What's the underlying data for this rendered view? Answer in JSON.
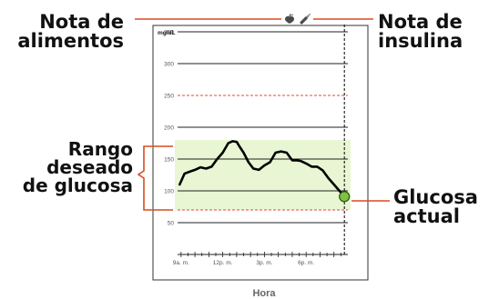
{
  "callouts": {
    "food_note": {
      "line1": "Nota de",
      "line2": "alimentos"
    },
    "insulin_note": {
      "line1": "Nota de",
      "line2": "insulina"
    },
    "target_range": {
      "line1": "Rango",
      "line2": "deseado",
      "line3": "de glucosa"
    },
    "current_glucose": {
      "line1": "Glucosa",
      "line2": "actual"
    }
  },
  "icons": {
    "food": "apple-icon",
    "insulin": "insulin-pen-icon"
  },
  "colors": {
    "glucose_line": "#000000",
    "target_band": "#e8f6d3",
    "limit_lines": "#e04b3a",
    "callout_lines": "#d94b1f",
    "current_marker": "#7dc242",
    "frame": "#333333"
  },
  "chart_data": {
    "type": "line",
    "y_unit_label": "mg/dL",
    "xlabel": "Hora",
    "ylim": [
      0,
      360
    ],
    "yticks": [
      50,
      100,
      150,
      200,
      250,
      300,
      350
    ],
    "ytick_labels": [
      "50",
      "100",
      "150",
      "200",
      "250",
      "300",
      "350"
    ],
    "xlim": [
      8.75,
      21.0
    ],
    "xticks": [
      9,
      12,
      15,
      18
    ],
    "xtick_labels": [
      "9a. m.",
      "12p. m.",
      "3p. m.",
      "6p. m."
    ],
    "target_range": [
      70,
      180
    ],
    "limit_lines": [
      70,
      250
    ],
    "current_time": 20.75,
    "series": [
      {
        "x": [
          8.9,
          9.25,
          9.6,
          10.0,
          10.4,
          10.8,
          11.2,
          11.6,
          12.0,
          12.4,
          12.7,
          13.0,
          13.2,
          13.5,
          13.85,
          14.2,
          14.6,
          15.0,
          15.4,
          15.8,
          16.2,
          16.6,
          17.0,
          17.3,
          17.6,
          18.0,
          18.4,
          18.8,
          19.2,
          19.6,
          20.0,
          20.4,
          20.75
        ],
        "y": [
          110,
          127,
          130,
          133,
          137,
          135,
          138,
          150,
          160,
          175,
          178,
          177,
          170,
          160,
          145,
          135,
          133,
          140,
          145,
          160,
          162,
          160,
          148,
          148,
          147,
          143,
          138,
          138,
          132,
          120,
          110,
          100,
          91
        ]
      }
    ]
  }
}
